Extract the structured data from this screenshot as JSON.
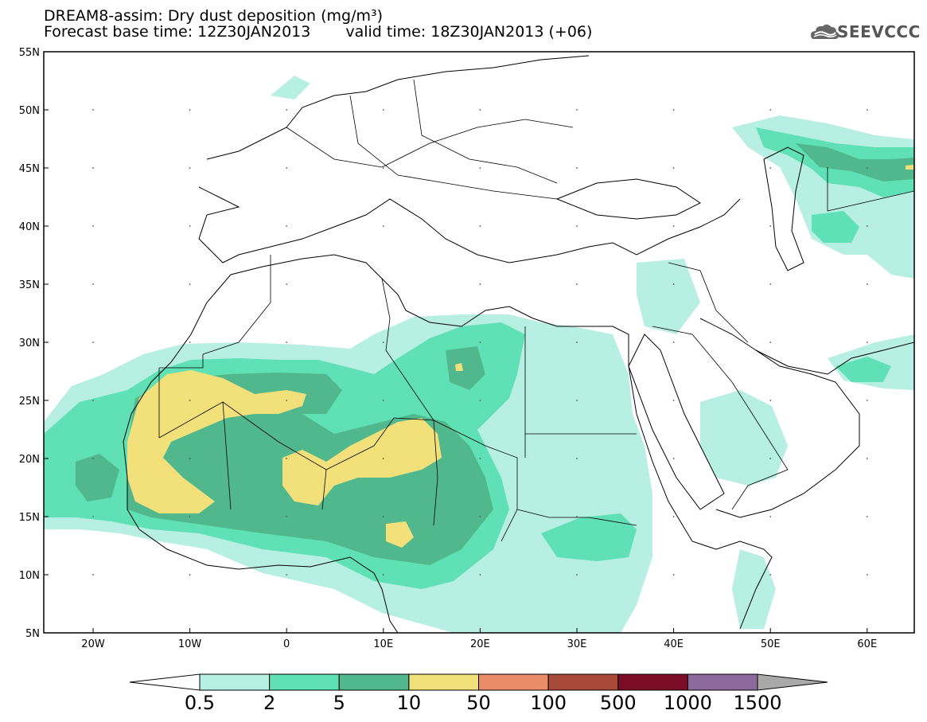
{
  "header": {
    "title": "DREAM8-assim: Dry dust deposition (mg/m³)",
    "base_time": "Forecast base time: 12Z30JAN2013",
    "valid_time": "valid time: 18Z30JAN2013 (+06)",
    "logo_text": "SEEVCCC"
  },
  "axes": {
    "lat_labels": [
      "55N",
      "50N",
      "45N",
      "40N",
      "35N",
      "30N",
      "25N",
      "20N",
      "15N",
      "10N",
      "5N"
    ],
    "lon_labels": [
      "20W",
      "10W",
      "0",
      "10E",
      "20E",
      "30E",
      "40E",
      "50E",
      "60E"
    ]
  },
  "legend": {
    "labels": [
      "0.5",
      "2",
      "5",
      "10",
      "50",
      "100",
      "500",
      "1000",
      "1500"
    ],
    "colors": [
      "#b8efe3",
      "#5fe0b5",
      "#50b88c",
      "#f2e07a",
      "#eb8c68",
      "#a84a3a",
      "#7a0d25",
      "#8c6a9c"
    ],
    "under_color": "#ffffff",
    "over_color": "#a9a9a9"
  }
}
